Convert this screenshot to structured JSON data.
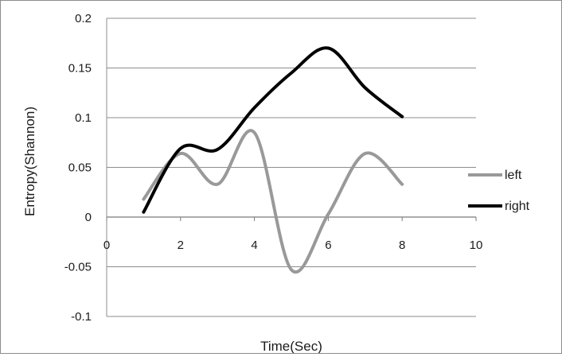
{
  "chart_data": {
    "type": "line",
    "xlabel": "Time(Sec)",
    "ylabel": "Entropy(Shannon)",
    "xlim": [
      0,
      10
    ],
    "ylim": [
      -0.1,
      0.2
    ],
    "x_ticks": [
      "0",
      "2",
      "4",
      "6",
      "8",
      "10"
    ],
    "y_ticks": [
      "0.2",
      "0.15",
      "0.1",
      "0.05",
      "0",
      "-0.05",
      "-0.1"
    ],
    "grid": "horizontal",
    "legend_position": "right",
    "series": [
      {
        "name": "left",
        "color": "#999999",
        "x": [
          1,
          2,
          3,
          4,
          5,
          6,
          7,
          8
        ],
        "y": [
          0.018,
          0.064,
          0.033,
          0.085,
          -0.053,
          0.003,
          0.064,
          0.033
        ]
      },
      {
        "name": "right",
        "color": "#000000",
        "x": [
          1,
          2,
          3,
          4,
          5,
          6,
          7,
          8
        ],
        "y": [
          0.005,
          0.069,
          0.068,
          0.11,
          0.145,
          0.17,
          0.13,
          0.101
        ]
      }
    ]
  }
}
